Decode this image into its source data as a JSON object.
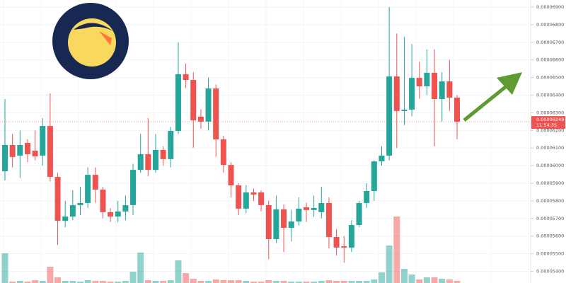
{
  "chart_data": {
    "type": "candlestick",
    "up_color": "#26a69a",
    "down_color": "#ef5350",
    "grid": true,
    "ylim": [
      5.334e-05,
      6.94e-05
    ],
    "yticks": [
      {
        "value": 6.9e-05,
        "label": "0.00006900"
      },
      {
        "value": 6.8e-05,
        "label": "0.00006800"
      },
      {
        "value": 6.7e-05,
        "label": "0.00006700"
      },
      {
        "value": 6.6e-05,
        "label": "0.00006600"
      },
      {
        "value": 6.5e-05,
        "label": "0.00006500"
      },
      {
        "value": 6.4e-05,
        "label": "0.00006400"
      },
      {
        "value": 6.3e-05,
        "label": "0.00006300"
      },
      {
        "value": 6.2e-05,
        "label": "0.00006200"
      },
      {
        "value": 6.1e-05,
        "label": "0.00006100"
      },
      {
        "value": 6e-05,
        "label": "0.00006000"
      },
      {
        "value": 5.9e-05,
        "label": "0.00005900"
      },
      {
        "value": 5.8e-05,
        "label": "0.00005800"
      },
      {
        "value": 5.7e-05,
        "label": "0.00005700"
      },
      {
        "value": 5.6e-05,
        "label": "0.00005600"
      },
      {
        "value": 5.5e-05,
        "label": "0.00005500"
      },
      {
        "value": 5.4e-05,
        "label": "0.00005400"
      }
    ],
    "open": [
      5.968e-05,
      6.117e-05,
      6.057e-05,
      6.129e-05,
      6.085e-05,
      6.057e-05,
      6.225e-05,
      5.936e-05,
      5.687e-05,
      5.711e-05,
      5.776e-05,
      5.788e-05,
      5.948e-05,
      5.864e-05,
      5.736e-05,
      5.711e-05,
      5.74e-05,
      5.776e-05,
      5.976e-05,
      6.065e-05,
      5.976e-05,
      6.089e-05,
      6.037e-05,
      6.197e-05,
      6.519e-05,
      6.486e-05,
      6.278e-05,
      6.25e-05,
      6.438e-05,
      6.149e-05,
      6.004e-05,
      5.888e-05,
      5.756e-05,
      5.848e-05,
      5.848e-05,
      5.776e-05,
      5.583e-05,
      5.752e-05,
      5.647e-05,
      5.683e-05,
      5.764e-05,
      5.748e-05,
      5.736e-05,
      5.788e-05,
      5.595e-05,
      5.543e-05,
      5.535e-05,
      5.663e-05,
      5.788e-05,
      5.856e-05,
      6.024e-05,
      6.057e-05,
      6.506e-05,
      6.31e-05,
      6.318e-05,
      6.498e-05,
      6.45e-05,
      6.527e-05,
      6.378e-05,
      6.478e-05,
      6.386e-05
    ],
    "high": [
      6.378e-05,
      6.18e-05,
      6.2e-05,
      6.15e-05,
      6.2e-05,
      6.27e-05,
      6.41e-05,
      5.96e-05,
      5.8e-05,
      5.86e-05,
      5.88e-05,
      5.99e-05,
      5.99e-05,
      5.88e-05,
      5.76e-05,
      5.8e-05,
      5.83e-05,
      6.01e-05,
      6.18e-05,
      6.27e-05,
      6.18e-05,
      6.11e-05,
      6.22e-05,
      6.7e-05,
      6.58e-05,
      6.53e-05,
      6.32e-05,
      6.5e-05,
      6.46e-05,
      6.17e-05,
      6.02e-05,
      5.9e-05,
      5.89e-05,
      5.87e-05,
      5.86e-05,
      5.8e-05,
      5.83e-05,
      5.78e-05,
      5.75e-05,
      5.82e-05,
      5.79e-05,
      5.83e-05,
      5.88e-05,
      5.82e-05,
      5.64e-05,
      5.6e-05,
      5.69e-05,
      5.8e-05,
      5.9e-05,
      6.03e-05,
      6.11e-05,
      6.9e-05,
      6.75e-05,
      6.73e-05,
      6.69e-05,
      6.59e-05,
      6.66e-05,
      6.66e-05,
      6.53e-05,
      6.6e-05,
      6.4e-05
    ],
    "low": [
      5.916e-05,
      5.99e-05,
      5.93e-05,
      6.02e-05,
      6.03e-05,
      6e-05,
      5.91e-05,
      5.55e-05,
      5.65e-05,
      5.69e-05,
      5.72e-05,
      5.76e-05,
      5.79e-05,
      5.7e-05,
      5.68e-05,
      5.68e-05,
      5.69e-05,
      5.72e-05,
      5.96e-05,
      5.94e-05,
      5.96e-05,
      6e-05,
      5.99e-05,
      6.18e-05,
      6.44e-05,
      6.1e-05,
      6.21e-05,
      6.2e-05,
      6.05e-05,
      5.96e-05,
      5.82e-05,
      5.72e-05,
      5.73e-05,
      5.8e-05,
      5.74e-05,
      5.47e-05,
      5.56e-05,
      5.51e-05,
      5.57e-05,
      5.66e-05,
      5.68e-05,
      5.71e-05,
      5.7e-05,
      5.53e-05,
      5.49e-05,
      5.45e-05,
      5.51e-05,
      5.65e-05,
      5.76e-05,
      5.8e-05,
      6e-05,
      6.03e-05,
      6.1e-05,
      6.23e-05,
      6.28e-05,
      6.38e-05,
      6.4e-05,
      6.11e-05,
      6.25e-05,
      6.31e-05,
      6.15e-05
    ],
    "close": [
      6.117e-05,
      6.049e-05,
      6.117e-05,
      6.065e-05,
      6.053e-05,
      6.225e-05,
      5.936e-05,
      5.687e-05,
      5.711e-05,
      5.776e-05,
      5.788e-05,
      5.948e-05,
      5.864e-05,
      5.736e-05,
      5.711e-05,
      5.74e-05,
      5.776e-05,
      5.976e-05,
      6.065e-05,
      5.976e-05,
      6.089e-05,
      6.037e-05,
      6.197e-05,
      6.519e-05,
      6.486e-05,
      6.257e-05,
      6.25e-05,
      6.438e-05,
      6.149e-05,
      6.004e-05,
      5.888e-05,
      5.756e-05,
      5.848e-05,
      5.836e-05,
      5.776e-05,
      5.583e-05,
      5.752e-05,
      5.647e-05,
      5.683e-05,
      5.756e-05,
      5.748e-05,
      5.76e-05,
      5.788e-05,
      5.595e-05,
      5.535e-05,
      5.535e-05,
      5.663e-05,
      5.788e-05,
      5.856e-05,
      6.024e-05,
      6.057e-05,
      6.506e-05,
      6.31e-05,
      6.318e-05,
      6.498e-05,
      6.45e-05,
      6.527e-05,
      6.378e-05,
      6.478e-05,
      6.386e-05,
      6.249e-05
    ],
    "volume": [
      42,
      2,
      3,
      2,
      4,
      3,
      23,
      8,
      3,
      3,
      2,
      4,
      3,
      3,
      2,
      2,
      3,
      16,
      43,
      4,
      3,
      3,
      4,
      32,
      14,
      6,
      3,
      3,
      5,
      4,
      4,
      4,
      3,
      2,
      2,
      4,
      3,
      3,
      2,
      2,
      2,
      2,
      3,
      4,
      3,
      3,
      3,
      3,
      3,
      5,
      15,
      53,
      94,
      20,
      12,
      5,
      8,
      8,
      6,
      5,
      3
    ],
    "last_price": {
      "value": 6.249e-05,
      "label": "0.00006249"
    },
    "countdown": "11:54:35"
  }
}
